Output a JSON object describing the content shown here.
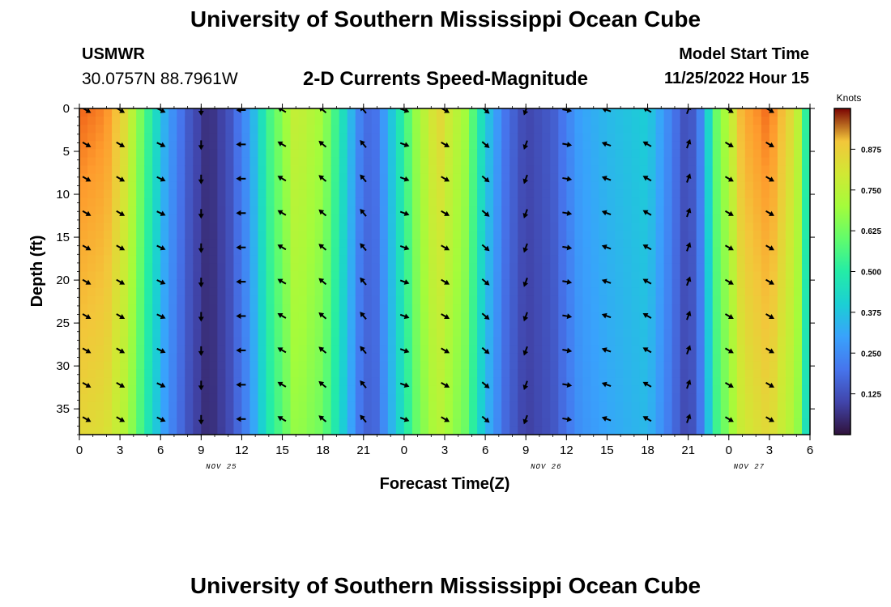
{
  "header": {
    "title": "University of Southern Mississippi Ocean Cube",
    "station_name": "USMWR",
    "station_coords": "30.0757N  88.7961W",
    "subtitle": "2-D Currents Speed-Magnitude",
    "model_start_label": "Model Start Time",
    "model_start_value": "11/25/2022 Hour 15"
  },
  "footer": {
    "title": "University of Southern Mississippi Ocean Cube"
  },
  "chart_data": {
    "type": "heatmap",
    "title": "2-D Currents Speed-Magnitude",
    "xlabel": "Forecast Time(Z)",
    "ylabel": "Depth (ft)",
    "x_range_hours": [
      0,
      54
    ],
    "y_range_ft": [
      0,
      38
    ],
    "y_inverted": true,
    "x_ticks": [
      {
        "hour": 0,
        "label": "0"
      },
      {
        "hour": 3,
        "label": "3"
      },
      {
        "hour": 6,
        "label": "6"
      },
      {
        "hour": 9,
        "label": "9"
      },
      {
        "hour": 12,
        "label": "12"
      },
      {
        "hour": 15,
        "label": "15"
      },
      {
        "hour": 18,
        "label": "18"
      },
      {
        "hour": 21,
        "label": "21"
      },
      {
        "hour": 24,
        "label": "0"
      },
      {
        "hour": 27,
        "label": "3"
      },
      {
        "hour": 30,
        "label": "6"
      },
      {
        "hour": 33,
        "label": "9"
      },
      {
        "hour": 36,
        "label": "12"
      },
      {
        "hour": 39,
        "label": "15"
      },
      {
        "hour": 42,
        "label": "18"
      },
      {
        "hour": 45,
        "label": "21"
      },
      {
        "hour": 48,
        "label": "0"
      },
      {
        "hour": 51,
        "label": "3"
      },
      {
        "hour": 54,
        "label": "6"
      }
    ],
    "date_labels": [
      {
        "hour": 10.5,
        "label": "NOV 25"
      },
      {
        "hour": 34.5,
        "label": "NOV 26"
      },
      {
        "hour": 49.5,
        "label": "NOV 27"
      }
    ],
    "y_ticks": [
      0,
      5,
      10,
      15,
      20,
      25,
      30,
      35
    ],
    "colorbar": {
      "title": "Knots",
      "range": [
        0,
        1.0
      ],
      "ticks": [
        "0.125",
        "0.250",
        "0.375",
        "0.500",
        "0.625",
        "0.750",
        "0.875"
      ]
    },
    "speed_profile_knots": [
      {
        "hour": 0,
        "speed": 0.95
      },
      {
        "hour": 2,
        "speed": 0.93
      },
      {
        "hour": 3.5,
        "speed": 0.82
      },
      {
        "hour": 5,
        "speed": 0.55
      },
      {
        "hour": 6.5,
        "speed": 0.3
      },
      {
        "hour": 8,
        "speed": 0.15
      },
      {
        "hour": 9.5,
        "speed": 0.05
      },
      {
        "hour": 11,
        "speed": 0.12
      },
      {
        "hour": 12.5,
        "speed": 0.28
      },
      {
        "hour": 14,
        "speed": 0.55
      },
      {
        "hour": 16,
        "speed": 0.78
      },
      {
        "hour": 18,
        "speed": 0.7
      },
      {
        "hour": 19.5,
        "speed": 0.45
      },
      {
        "hour": 21,
        "speed": 0.18
      },
      {
        "hour": 22,
        "speed": 0.2
      },
      {
        "hour": 23.5,
        "speed": 0.45
      },
      {
        "hour": 25,
        "speed": 0.7
      },
      {
        "hour": 26.5,
        "speed": 0.85
      },
      {
        "hour": 28.5,
        "speed": 0.7
      },
      {
        "hour": 30,
        "speed": 0.4
      },
      {
        "hour": 31.5,
        "speed": 0.2
      },
      {
        "hour": 33,
        "speed": 0.1
      },
      {
        "hour": 35,
        "speed": 0.15
      },
      {
        "hour": 37,
        "speed": 0.3
      },
      {
        "hour": 39,
        "speed": 0.35
      },
      {
        "hour": 42,
        "speed": 0.4
      },
      {
        "hour": 43.5,
        "speed": 0.25
      },
      {
        "hour": 45,
        "speed": 0.1
      },
      {
        "hour": 46,
        "speed": 0.25
      },
      {
        "hour": 47,
        "speed": 0.6
      },
      {
        "hour": 49,
        "speed": 0.9
      },
      {
        "hour": 51,
        "speed": 0.95
      },
      {
        "hour": 53,
        "speed": 0.8
      },
      {
        "hour": 54,
        "speed": 0.4
      }
    ],
    "arrow_depths_ft": [
      0,
      4,
      8,
      12,
      16,
      20,
      24,
      28,
      32,
      36
    ],
    "arrow_directions_deg": [
      {
        "hour": 0.5,
        "dir": 120
      },
      {
        "hour": 3,
        "dir": 120
      },
      {
        "hour": 6,
        "dir": 115
      },
      {
        "hour": 9,
        "dir": 180
      },
      {
        "hour": 12,
        "dir": 270
      },
      {
        "hour": 15,
        "dir": 300
      },
      {
        "hour": 18,
        "dir": 310
      },
      {
        "hour": 21,
        "dir": 320
      },
      {
        "hour": 24,
        "dir": 110
      },
      {
        "hour": 27,
        "dir": 120
      },
      {
        "hour": 30,
        "dir": 130
      },
      {
        "hour": 33,
        "dir": 200
      },
      {
        "hour": 36,
        "dir": 100
      },
      {
        "hour": 39,
        "dir": 290
      },
      {
        "hour": 42,
        "dir": 300
      },
      {
        "hour": 45,
        "dir": 20
      },
      {
        "hour": 48,
        "dir": 120
      },
      {
        "hour": 51,
        "dir": 120
      }
    ]
  }
}
